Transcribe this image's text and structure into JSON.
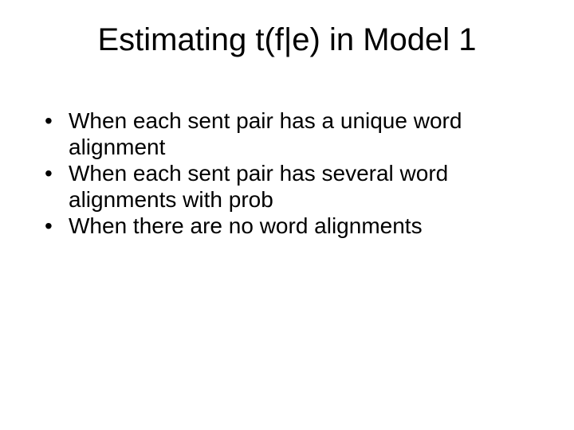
{
  "slide": {
    "title": "Estimating t(f|e) in Model 1",
    "bullets": [
      "When each sent pair has a unique word alignment",
      "When each sent pair has several word alignments with prob",
      "When there are no word alignments"
    ],
    "style": {
      "background_color": "#ffffff",
      "text_color": "#000000",
      "title_fontsize": 40,
      "title_fontweight": 400,
      "body_fontsize": 28,
      "font_family": "Arial"
    }
  }
}
